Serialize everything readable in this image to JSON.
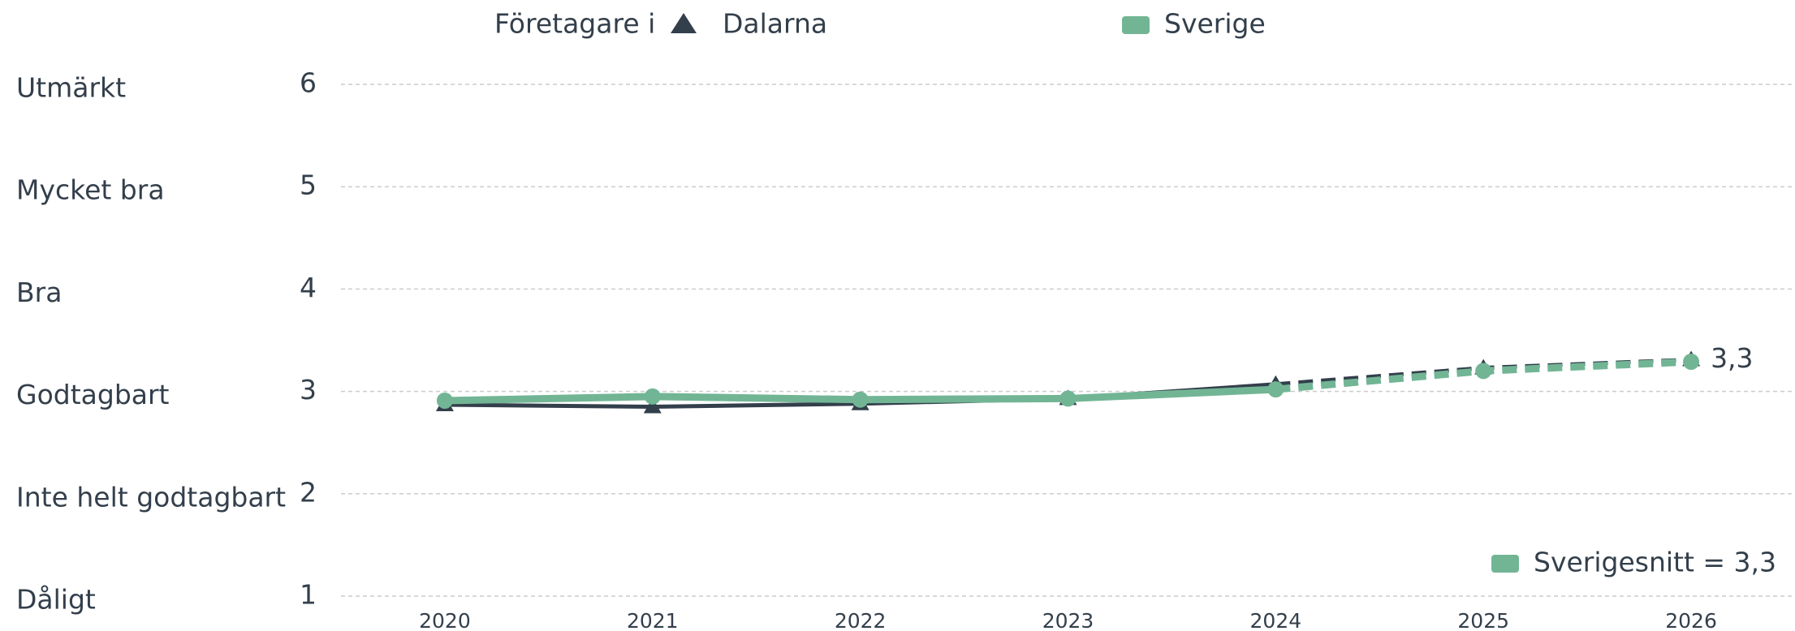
{
  "chart_data": {
    "type": "line",
    "legend_title": "Företagare i",
    "categories": [
      "2020",
      "2021",
      "2022",
      "2023",
      "2024",
      "2025",
      "2026"
    ],
    "series": [
      {
        "name": "Dalarna",
        "color": "#333f4b",
        "marker": "triangle",
        "values": [
          2.87,
          2.85,
          2.88,
          2.93,
          3.07,
          3.23,
          3.31
        ],
        "value_labels": [
          null,
          null,
          null,
          null,
          null,
          null,
          "3,3"
        ]
      },
      {
        "name": "Sverige",
        "color": "#72b595",
        "marker": "circle",
        "values": [
          2.91,
          2.95,
          2.92,
          2.93,
          3.02,
          3.2,
          3.29
        ]
      }
    ],
    "dashed_from": "2024",
    "ylim": [
      1,
      6
    ],
    "yticks": [
      1,
      2,
      3,
      4,
      5,
      6
    ],
    "ytick_names": [
      "Dåligt",
      "Inte helt godtagbart",
      "Godtagbart",
      "Bra",
      "Mycket bra",
      "Utmärkt"
    ],
    "annotation": "Sverigesnitt = 3,3",
    "grid": true
  }
}
